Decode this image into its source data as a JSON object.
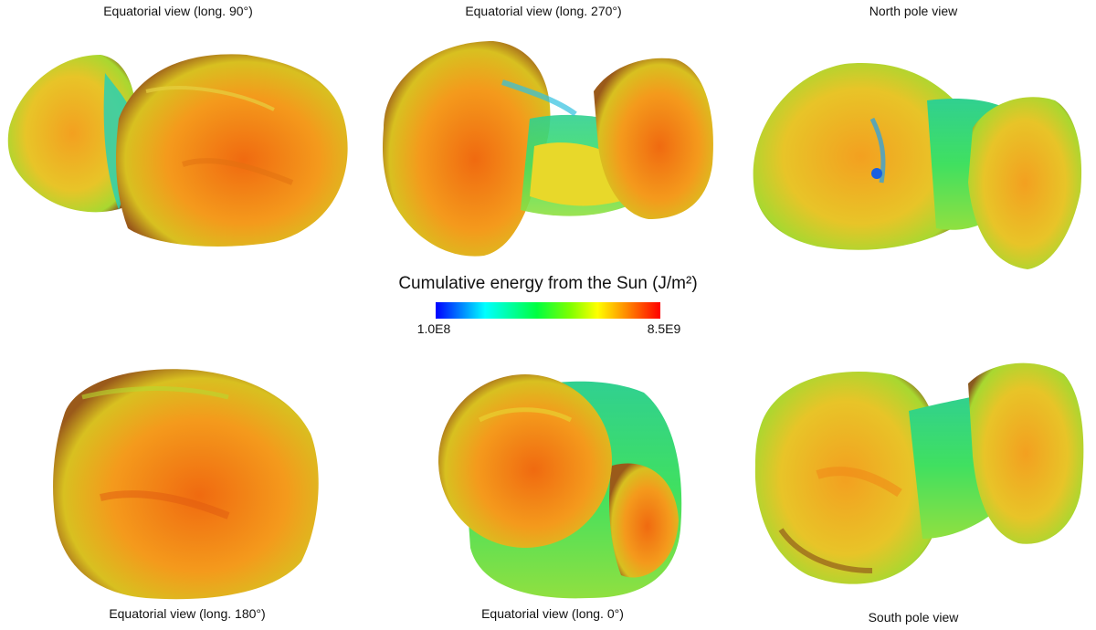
{
  "panels": [
    {
      "label": "Equatorial view (long. 90°)"
    },
    {
      "label": "Equatorial view (long. 270°)"
    },
    {
      "label": "North pole view"
    },
    {
      "label": "Equatorial view (long. 180°)"
    },
    {
      "label": "Equatorial view (long. 0°)"
    },
    {
      "label": "South pole view"
    }
  ],
  "colorbar": {
    "title": "Cumulative energy from the Sun (J/m²)",
    "min_label": "1.0E8",
    "max_label": "8.5E9",
    "colors": [
      "#0000ff",
      "#00ffff",
      "#00ff40",
      "#ffff00",
      "#ff8000",
      "#ff0000"
    ]
  }
}
